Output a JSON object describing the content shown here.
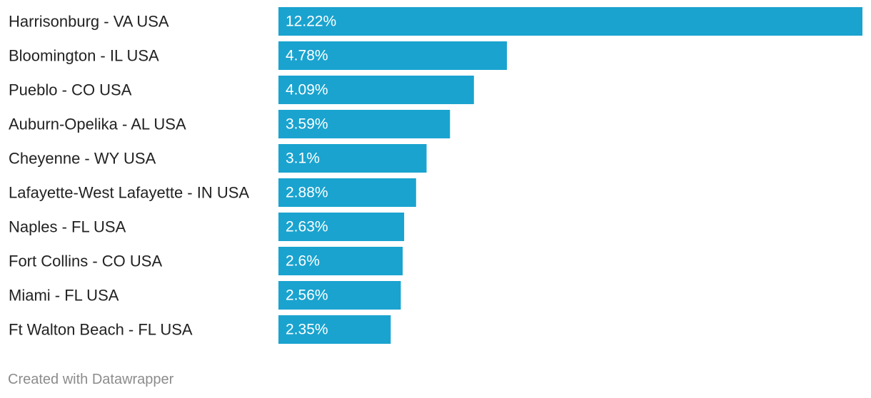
{
  "chart_data": {
    "type": "bar",
    "orientation": "horizontal",
    "categories": [
      "Harrisonburg - VA USA",
      "Bloomington - IL USA",
      "Pueblo - CO USA",
      "Auburn-Opelika - AL USA",
      "Cheyenne - WY USA",
      "Lafayette-West Lafayette - IN USA",
      "Naples - FL USA",
      "Fort Collins - CO USA",
      "Miami - FL USA",
      "Ft Walton Beach - FL USA"
    ],
    "values": [
      12.22,
      4.78,
      4.09,
      3.59,
      3.1,
      2.88,
      2.63,
      2.6,
      2.56,
      2.35
    ],
    "value_labels": [
      "12.22%",
      "4.78%",
      "4.09%",
      "3.59%",
      "3.1%",
      "2.88%",
      "2.63%",
      "2.6%",
      "2.56%",
      "2.35%"
    ],
    "xlim": [
      0,
      12.22
    ],
    "bar_color": "#1aa3cf",
    "label_color": "#222222",
    "grid": false,
    "legend": "none"
  },
  "footer": {
    "credit": "Created with Datawrapper"
  }
}
